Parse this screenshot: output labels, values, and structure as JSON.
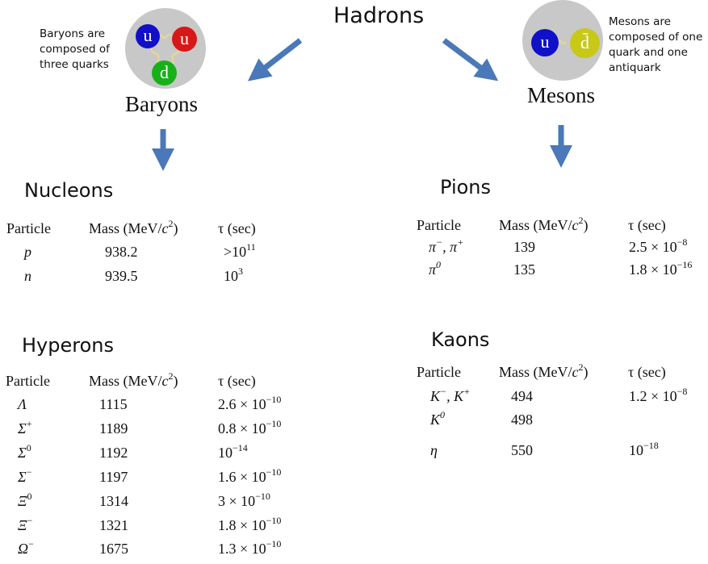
{
  "header": {
    "title": "Hadrons"
  },
  "baryons": {
    "label": "Baryons",
    "note": [
      "Baryons are",
      "composed of",
      "three quarks"
    ],
    "quarks": [
      {
        "label": "u",
        "color": "#1010c8"
      },
      {
        "label": "u",
        "color": "#d81818"
      },
      {
        "label": "d",
        "color": "#18b018"
      }
    ]
  },
  "mesons": {
    "label": "Mesons",
    "note": [
      "Mesons are",
      "composed of one",
      "quark and one",
      "antiquark"
    ],
    "quarks": [
      {
        "label": "u",
        "color": "#1010c8"
      },
      {
        "label": "d̄",
        "color": "#c8c818"
      }
    ]
  },
  "colors": {
    "arrow": "#4a78b8",
    "hadron_circle": "#c8c8c8"
  },
  "columns": {
    "particle": "Particle",
    "mass": "Mass (MeV/",
    "mass_c": "c",
    "mass_exp": "2",
    "mass_close": ")",
    "tau": "τ (sec)"
  },
  "nucleons": {
    "title": "Nucleons",
    "rows": [
      {
        "sym": "p",
        "sup": "",
        "mass": "938.2",
        "tau": ">10",
        "tau_exp": "11"
      },
      {
        "sym": "n",
        "sup": "",
        "mass": "939.5",
        "tau": "10",
        "tau_exp": "3"
      }
    ]
  },
  "hyperons": {
    "title": "Hyperons",
    "rows": [
      {
        "sym": "Λ",
        "sup": "",
        "mass": "1115",
        "tau": "2.6 × 10",
        "tau_exp": "−10"
      },
      {
        "sym": "Σ",
        "sup": "+",
        "mass": "1189",
        "tau": "0.8 × 10",
        "tau_exp": "−10"
      },
      {
        "sym": "Σ",
        "sup": "0",
        "mass": "1192",
        "tau": "10",
        "tau_exp": "−14"
      },
      {
        "sym": "Σ",
        "sup": "−",
        "mass": "1197",
        "tau": "1.6 × 10",
        "tau_exp": "−10"
      },
      {
        "sym": "Ξ",
        "sup": "0",
        "mass": "1314",
        "tau": "3 × 10",
        "tau_exp": "−10"
      },
      {
        "sym": "Ξ",
        "sup": "−",
        "mass": "1321",
        "tau": "1.8 × 10",
        "tau_exp": "−10"
      },
      {
        "sym": "Ω",
        "sup": "−",
        "mass": "1675",
        "tau": "1.3 × 10",
        "tau_exp": "−10"
      }
    ]
  },
  "pions": {
    "title": "Pions",
    "rows": [
      {
        "sym": "π<sup>−</sup>, π<sup>+</sup>",
        "mass": "139",
        "tau": "2.5 × 10",
        "tau_exp": "−8"
      },
      {
        "sym": "π<sup>0</sup>",
        "mass": "135",
        "tau": "1.8 × 10",
        "tau_exp": "−16"
      }
    ]
  },
  "kaons": {
    "title": "Kaons",
    "rows": [
      {
        "sym": "K<sup>−</sup>, K<sup>+</sup>",
        "mass": "494",
        "tau": "1.2 × 10",
        "tau_exp": "−8"
      },
      {
        "sym": "K<sup>0</sup>",
        "mass": "498",
        "tau": "",
        "tau_exp": ""
      },
      {
        "sym": "η",
        "mass": "550",
        "tau": "10",
        "tau_exp": "−18"
      }
    ]
  }
}
